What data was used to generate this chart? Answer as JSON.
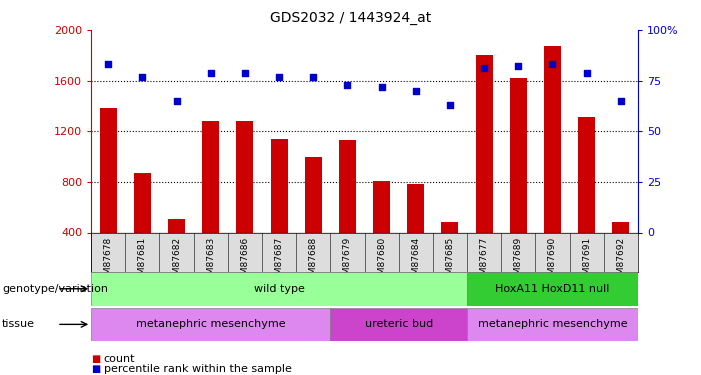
{
  "title": "GDS2032 / 1443924_at",
  "samples": [
    "GSM87678",
    "GSM87681",
    "GSM87682",
    "GSM87683",
    "GSM87686",
    "GSM87687",
    "GSM87688",
    "GSM87679",
    "GSM87680",
    "GSM87684",
    "GSM87685",
    "GSM87677",
    "GSM87689",
    "GSM87690",
    "GSM87691",
    "GSM87692"
  ],
  "counts": [
    1380,
    870,
    510,
    1280,
    1280,
    1140,
    1000,
    1130,
    810,
    780,
    480,
    1800,
    1620,
    1870,
    1310,
    480
  ],
  "percentiles": [
    83,
    77,
    65,
    79,
    79,
    77,
    77,
    73,
    72,
    70,
    63,
    81,
    82,
    83,
    79,
    65
  ],
  "ylim_left": [
    400,
    2000
  ],
  "ylim_right": [
    0,
    100
  ],
  "yticks_left": [
    400,
    800,
    1200,
    1600,
    2000
  ],
  "yticks_right": [
    0,
    25,
    50,
    75,
    100
  ],
  "bar_color": "#cc0000",
  "dot_color": "#0000cc",
  "bar_width": 0.5,
  "genotype_groups": [
    {
      "label": "wild type",
      "start": 0,
      "end": 11,
      "color": "#99ff99"
    },
    {
      "label": "HoxA11 HoxD11 null",
      "start": 11,
      "end": 16,
      "color": "#33cc33"
    }
  ],
  "tissue_groups": [
    {
      "label": "metanephric mesenchyme",
      "start": 0,
      "end": 7,
      "color": "#dd88ee"
    },
    {
      "label": "ureteric bud",
      "start": 7,
      "end": 11,
      "color": "#cc44cc"
    },
    {
      "label": "metanephric mesenchyme",
      "start": 11,
      "end": 16,
      "color": "#dd88ee"
    }
  ],
  "legend_items": [
    {
      "label": "count",
      "color": "#cc0000"
    },
    {
      "label": "percentile rank within the sample",
      "color": "#0000cc"
    }
  ],
  "genotype_label": "genotype/variation",
  "tissue_label": "tissue",
  "ylabel_left_color": "#cc0000",
  "ylabel_right_color": "#0000cc"
}
